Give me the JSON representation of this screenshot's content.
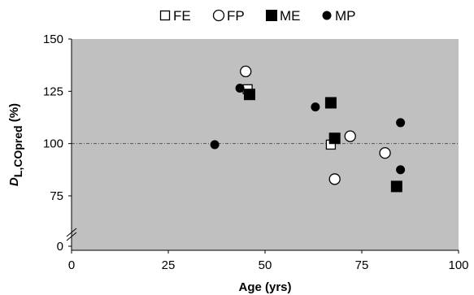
{
  "chart_data": {
    "type": "scatter",
    "xlabel": "Age (yrs)",
    "ylabel_main": "D",
    "ylabel_sub": "L,COpred",
    "ylabel_unit": " (%)",
    "xlim": [
      0,
      100
    ],
    "ylim": [
      0,
      150
    ],
    "y_axis_break": true,
    "x_ticks": [
      0,
      25,
      50,
      75,
      100
    ],
    "y_ticks": [
      0,
      75,
      100,
      125,
      150
    ],
    "reference_line_y": 100,
    "legend_position": "top",
    "plot_background": "#c0c0c0",
    "series": [
      {
        "name": "FE",
        "marker": "square-open",
        "points": [
          [
            45.5,
            126
          ],
          [
            67,
            99.5
          ]
        ]
      },
      {
        "name": "FP",
        "marker": "circle-open",
        "points": [
          [
            45,
            134.5
          ],
          [
            68,
            83
          ],
          [
            72,
            103.5
          ],
          [
            81,
            95.5
          ]
        ]
      },
      {
        "name": "ME",
        "marker": "square-filled",
        "points": [
          [
            46,
            123.5
          ],
          [
            67,
            119.5
          ],
          [
            68,
            102.5
          ],
          [
            84,
            79.5
          ]
        ]
      },
      {
        "name": "MP",
        "marker": "circle-filled",
        "points": [
          [
            37,
            99.5
          ],
          [
            43.5,
            126.5
          ],
          [
            63,
            117.5
          ],
          [
            85,
            110
          ],
          [
            85,
            87.5
          ]
        ]
      }
    ]
  }
}
